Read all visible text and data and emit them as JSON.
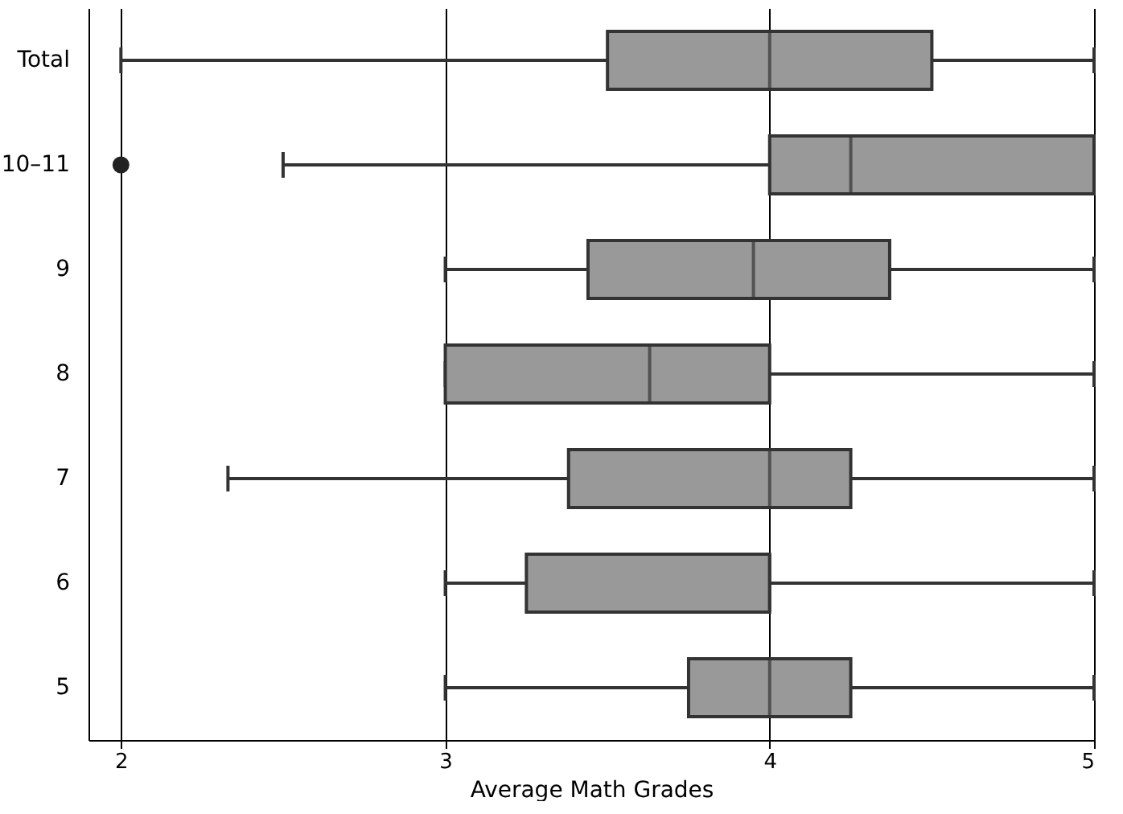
{
  "chart_data": {
    "type": "box",
    "orientation": "horizontal",
    "xlabel": "Average Math Grades",
    "categories": [
      "Total",
      "10–11",
      "9",
      "8",
      "7",
      "6",
      "5"
    ],
    "xlim": [
      1.9,
      5.0
    ],
    "xticks": [
      2,
      3,
      4,
      5
    ],
    "grid": "x",
    "series": [
      {
        "color": "#999999",
        "boxes": [
          {
            "low": 2,
            "q1": 3.5,
            "median": 4,
            "q3": 4.5,
            "high": 5
          },
          {
            "low": 2.5,
            "q1": 4,
            "median": 4.25,
            "q3": 5,
            "high": 5,
            "outliers": [
              2
            ]
          },
          {
            "low": 3,
            "q1": 3.44,
            "median": 3.95,
            "q3": 4.37,
            "high": 5
          },
          {
            "low": 3,
            "q1": 3,
            "median": 3.63,
            "q3": 4,
            "high": 5
          },
          {
            "low": 2.33,
            "q1": 3.38,
            "median": 4,
            "q3": 4.25,
            "high": 5
          },
          {
            "low": 3,
            "q1": 3.25,
            "median": 4,
            "q3": 4,
            "high": 5
          },
          {
            "low": 3,
            "q1": 3.75,
            "median": 4,
            "q3": 4.25,
            "high": 5
          }
        ]
      }
    ]
  }
}
